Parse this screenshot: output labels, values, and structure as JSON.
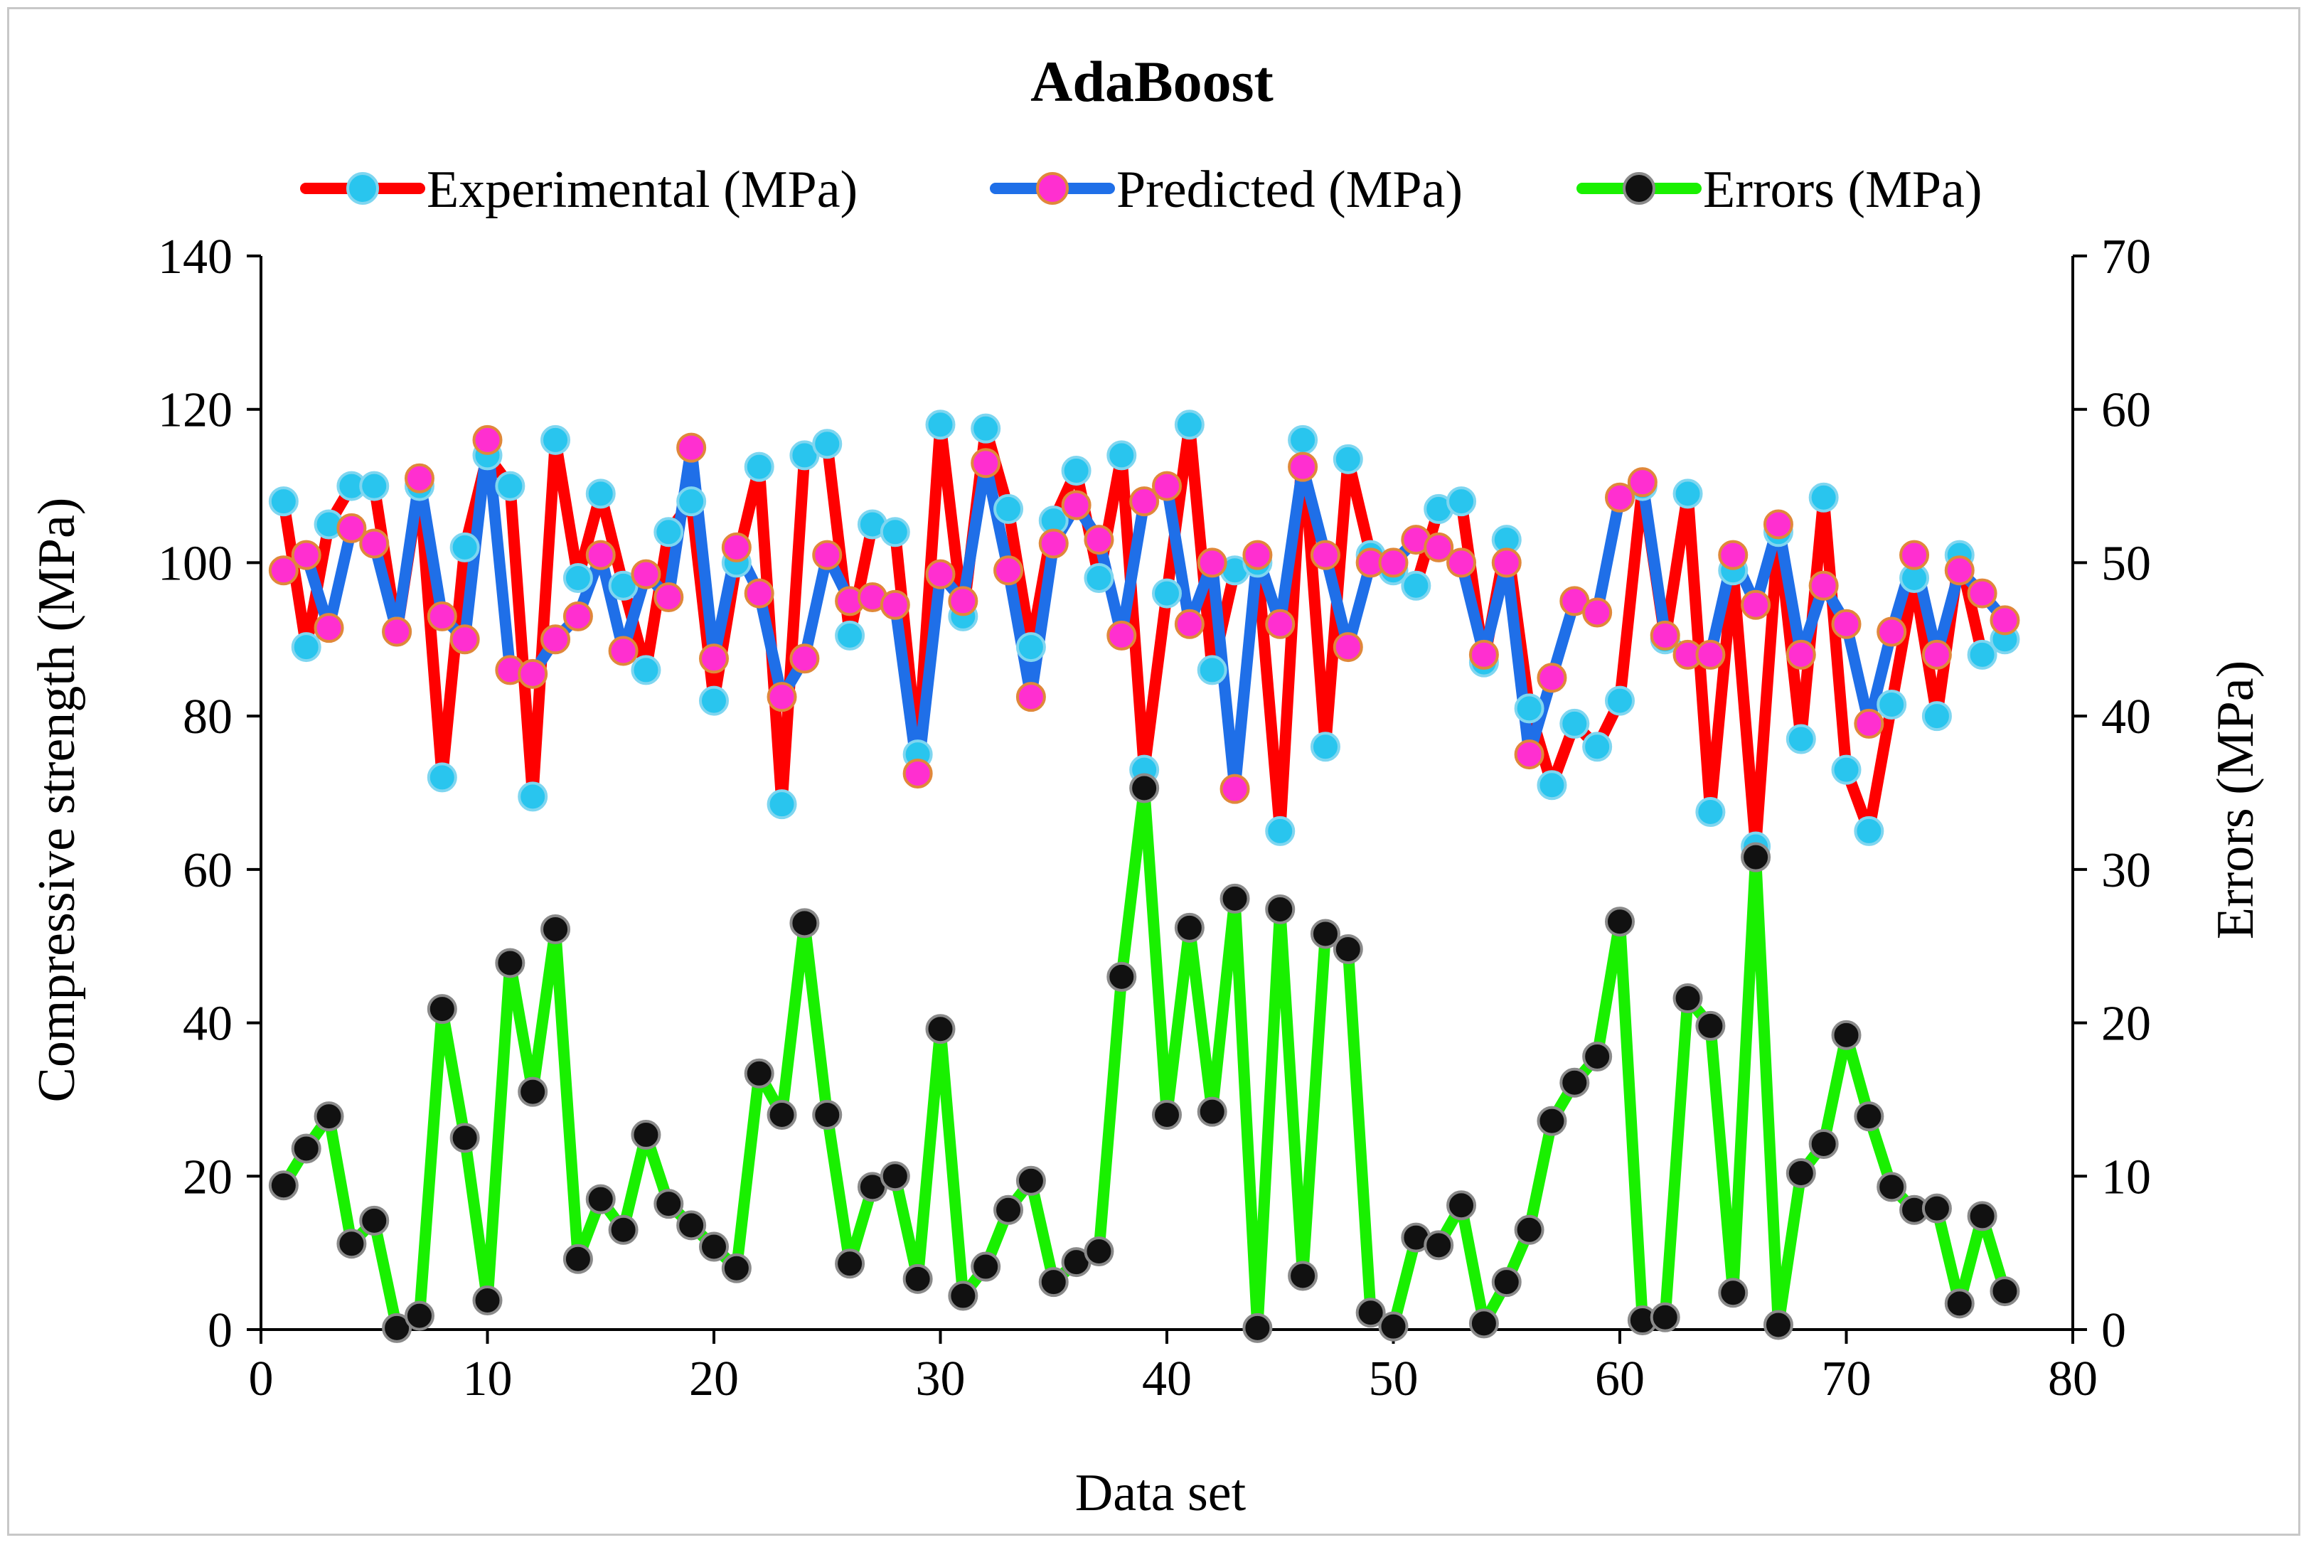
{
  "chart_data": {
    "type": "line",
    "title": "AdaBoost",
    "xlabel": "Data set",
    "ylabel": "Compressive strength (MPa)",
    "y2label": "Errors (MPa)",
    "xlim": [
      0,
      80
    ],
    "ylim": [
      0,
      140
    ],
    "y2lim": [
      0,
      70
    ],
    "xticks": [
      0,
      10,
      20,
      30,
      40,
      50,
      60,
      70,
      80
    ],
    "yticks": [
      0,
      20,
      40,
      60,
      80,
      100,
      120,
      140
    ],
    "y2ticks": [
      0,
      10,
      20,
      30,
      40,
      50,
      60,
      70
    ],
    "legend_position": "top",
    "x": [
      1,
      2,
      3,
      4,
      5,
      6,
      7,
      8,
      9,
      10,
      11,
      12,
      13,
      14,
      15,
      16,
      17,
      18,
      19,
      20,
      21,
      22,
      23,
      24,
      25,
      26,
      27,
      28,
      29,
      30,
      31,
      32,
      33,
      34,
      35,
      36,
      37,
      38,
      39,
      40,
      41,
      42,
      43,
      44,
      45,
      46,
      47,
      48,
      49,
      50,
      51,
      52,
      53,
      54,
      55,
      56,
      57,
      58,
      59,
      60,
      61,
      62,
      63,
      64,
      65,
      66,
      67,
      68,
      69,
      70,
      71,
      72,
      73,
      74,
      75,
      76,
      77
    ],
    "series": [
      {
        "name": "Experimental (MPa)",
        "axis": "left",
        "line_color": "#ff0000",
        "marker_color": "#29c5ee",
        "values": [
          108,
          89,
          105,
          110,
          110,
          91,
          110,
          72,
          102,
          114,
          110,
          69.5,
          116,
          98,
          109,
          97,
          86,
          104,
          108,
          82,
          100,
          112.5,
          68.5,
          114,
          115.5,
          90.5,
          105,
          104,
          75,
          118,
          93,
          117.5,
          107,
          89,
          105.5,
          112,
          98,
          114,
          73,
          96,
          118,
          86,
          99,
          100,
          65,
          116,
          76,
          113.5,
          101,
          99,
          97,
          107,
          108,
          87,
          103,
          81,
          71,
          79,
          76,
          82,
          110,
          90,
          109,
          67.5,
          99,
          63,
          104,
          77,
          108.5,
          73,
          65,
          81.5,
          98,
          80,
          101,
          88,
          90
        ]
      },
      {
        "name": "Predicted (MPa)",
        "axis": "left",
        "line_color": "#1f6fe8",
        "marker_color": "#ff2fd0",
        "values": [
          99,
          101,
          91.5,
          104.5,
          102.5,
          91,
          111,
          93,
          90,
          116,
          86,
          85.5,
          90,
          93,
          101,
          88.5,
          98.5,
          95.5,
          115,
          87.5,
          102,
          96,
          82.5,
          87.5,
          101,
          95,
          95.5,
          94.5,
          72.5,
          98.5,
          95,
          113,
          99,
          82.5,
          102.5,
          107.5,
          103,
          90.5,
          108,
          110,
          92,
          100,
          70.5,
          101,
          92,
          112.5,
          101,
          89,
          100,
          100,
          103,
          102,
          100,
          88,
          100,
          75,
          85,
          95,
          93.5,
          108.5,
          110.5,
          90.5,
          88,
          88,
          101,
          94.5,
          105,
          88,
          97,
          92,
          79,
          91,
          101,
          88,
          99,
          96,
          92.5
        ]
      },
      {
        "name": "Errors (MPa)",
        "axis": "right",
        "line_color": "#19f000",
        "marker_color": "#111111",
        "values": [
          9.4,
          11.8,
          13.9,
          5.6,
          7.1,
          0.1,
          0.9,
          20.9,
          12.5,
          1.9,
          23.9,
          15.5,
          26.1,
          4.6,
          8.5,
          6.5,
          12.7,
          8.2,
          6.8,
          5.4,
          4,
          16.7,
          14,
          26.5,
          14,
          4.3,
          9.3,
          10,
          3.3,
          19.6,
          2.2,
          4.1,
          7.8,
          9.7,
          3.1,
          4.4,
          5.1,
          23,
          35.3,
          14,
          26.2,
          14.2,
          28.1,
          0.1,
          27.4,
          3.5,
          25.8,
          24.8,
          1.1,
          0.2,
          6,
          5.5,
          8.1,
          0.4,
          3.1,
          6.5,
          13.6,
          16.1,
          17.8,
          26.6,
          0.6,
          0.8,
          21.6,
          19.8,
          2.4,
          30.8,
          0.3,
          10.2,
          12.1,
          19.2,
          13.9,
          9.3,
          7.8,
          7.9,
          1.7,
          7.4,
          2.5
        ]
      }
    ]
  }
}
